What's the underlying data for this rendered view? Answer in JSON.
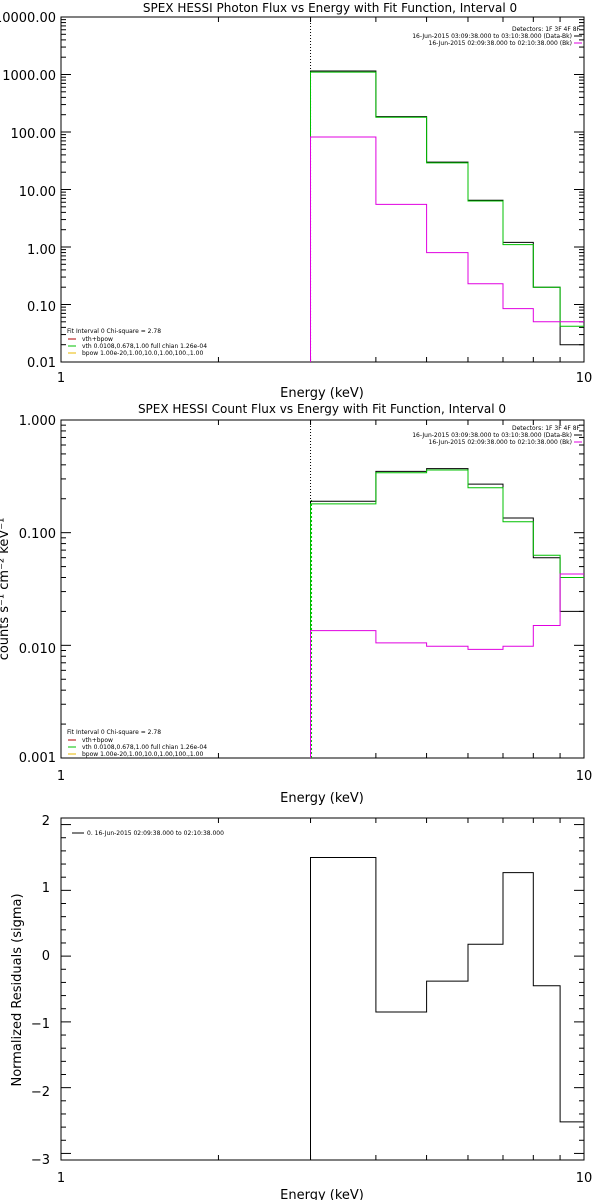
{
  "colors": {
    "axis": "#000000",
    "total": "#000000",
    "vth_bpow": "#b00000",
    "vth": "#00c000",
    "bpow": "#e8b800",
    "background": "#e000e0"
  },
  "panels": {
    "photon": {
      "title": "SPEX HESSI Photon Flux vs Energy with Fit Function, Interval 0",
      "xlabel": "Energy (keV)",
      "ytick_labels": [
        "10000.00",
        "1000.00",
        "100.00",
        "10.00",
        "1.00",
        "0.10",
        "0.01"
      ],
      "xtick_labels": [
        "1",
        "10"
      ],
      "detectors": "Detectors: 1F 3F 4F 8F",
      "info_lines": [
        "16-Jun-2015 03:09:38.000 to 03:10:38.000 (Data-Bk)",
        "16-Jun-2015 02:09:38.000 to 02:10:38.000 (Bk)"
      ],
      "fit_line": "Fit Interval 0   Chi-square = 2.78",
      "legend": [
        "vth+bpow",
        "vth 0.0108,0.678,1.00  full chian 1.26e-04",
        "bpow 1.00e-20,1.00,10.0,1.00,100.,1.00"
      ]
    },
    "count": {
      "title": "SPEX HESSI Count Flux vs Energy with Fit Function, Interval 0",
      "xlabel": "Energy (keV)",
      "ylabel": "counts s⁻¹ cm⁻² keV⁻¹",
      "ytick_labels": [
        "1.000",
        "0.100",
        "0.010",
        "0.001"
      ],
      "xtick_labels": [
        "1",
        "10"
      ],
      "detectors": "Detectors: 1F 3F 4F 8F",
      "info_lines": [
        "16-Jun-2015 03:09:38.000 to 03:10:38.000 (Data-Bk)",
        "16-Jun-2015 02:09:38.000 to 02:10:38.000 (Bk)"
      ],
      "fit_line": "Fit Interval 0   Chi-square = 2.78",
      "legend": [
        "vth+bpow",
        "vth 0.0108,0.678,1.00  full chian 1.26e-04",
        "bpow 1.00e-20,1.00,10.0,1.00,100.,1.00"
      ]
    },
    "residuals": {
      "xlabel": "Energy (keV)",
      "ylabel": "Normalized Residuals (sigma)",
      "ytick_labels": [
        "2",
        "1",
        "0",
        "−1",
        "−2",
        "−3"
      ],
      "xtick_labels": [
        "1",
        "10"
      ],
      "legend": [
        "0. 16-Jun-2015 02:09:38.000 to 02:10:38.000"
      ]
    }
  },
  "chart_data": [
    {
      "type": "line",
      "title": "SPEX HESSI Photon Flux vs Energy with Fit Function, Interval 0",
      "xlabel": "Energy (keV)",
      "ylabel": "",
      "xscale": "log",
      "yscale": "log",
      "xlim": [
        1,
        10
      ],
      "ylim": [
        0.01,
        10000
      ],
      "grid": false,
      "legend_position": "bottom-left",
      "fit_start_energy": 3,
      "bin_edges": [
        3,
        4,
        5,
        6,
        7,
        8,
        9,
        10
      ],
      "series": [
        {
          "name": "",
          "values": [
            1150,
            185,
            30,
            6.5,
            1.2,
            0.2,
            0.02
          ]
        },
        {
          "name": "vth+bpow",
          "values": [
            1100,
            180,
            29,
            6.3,
            1.1,
            0.2,
            0.042
          ]
        },
        {
          "name": "",
          "values": [
            82,
            5.5,
            0.8,
            0.23,
            0.085,
            0.05,
            0.05
          ]
        }
      ]
    },
    {
      "type": "line",
      "title": "SPEX HESSI Count Flux vs Energy with Fit Function, Interval 0",
      "xlabel": "Energy (keV)",
      "ylabel": "counts s⁻¹ cm⁻² keV⁻¹",
      "xscale": "log",
      "yscale": "log",
      "xlim": [
        1,
        10
      ],
      "ylim": [
        0.001,
        1
      ],
      "grid": false,
      "legend_position": "bottom-left",
      "fit_start_energy": 3,
      "bin_edges": [
        3,
        4,
        5,
        6,
        7,
        8,
        9,
        10
      ],
      "series": [
        {
          "name": "",
          "values": [
            0.19,
            0.35,
            0.37,
            0.27,
            0.135,
            0.06,
            0.02
          ]
        },
        {
          "name": "vth+bpow",
          "values": [
            0.18,
            0.34,
            0.36,
            0.25,
            0.125,
            0.063,
            0.04
          ]
        },
        {
          "name": "",
          "values": [
            0.0135,
            0.0105,
            0.0098,
            0.0092,
            0.0098,
            0.015,
            0.043
          ]
        }
      ]
    },
    {
      "type": "line",
      "xlabel": "Energy (keV)",
      "ylabel": "Normalized Residuals (sigma)",
      "xscale": "log",
      "yscale": "linear",
      "xlim": [
        1,
        10
      ],
      "ylim": [
        -3.1,
        2.1
      ],
      "grid": false,
      "legend_position": "top-left",
      "bin_edges": [
        3,
        4,
        5,
        6,
        7,
        8,
        9,
        10
      ],
      "series": [
        {
          "name": "0. 16-Jun-2015 02:09:38.000 to 02:10:38.000",
          "values": [
            1.5,
            -0.85,
            -0.38,
            0.18,
            1.27,
            -0.45,
            -2.52
          ]
        }
      ]
    }
  ]
}
